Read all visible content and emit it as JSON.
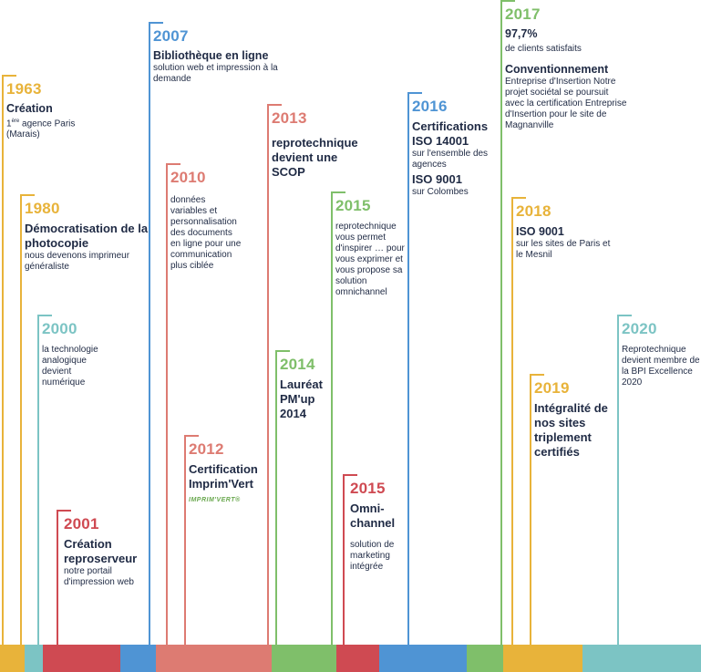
{
  "colors": {
    "yellow": "#e8b33a",
    "teal": "#7cc4c4",
    "red": "#cf4a52",
    "blue": "#4f94d4",
    "salmon": "#dd7b72",
    "green": "#7fbf6a"
  },
  "entries": {
    "e1963": {
      "year": "1963",
      "head": "Création",
      "sup": "ère",
      "text1": "1",
      "text2": " agence Paris",
      "text3": "(Marais)"
    },
    "e1980": {
      "year": "1980",
      "head": "Démocratisation de la photocopie",
      "text": "nous devenons imprimeur généraliste"
    },
    "e2000": {
      "year": "2000",
      "text": "la technologie analogique devient numérique"
    },
    "e2001": {
      "year": "2001",
      "head": "Création reproserveur",
      "text": "notre portail d'impression web"
    },
    "e2007": {
      "year": "2007",
      "head": "Bibliothèque en ligne",
      "text": "solution web et impression à la demande"
    },
    "e2010": {
      "year": "2010",
      "text": "données variables et personnalisation des documents en ligne pour une communication plus ciblée"
    },
    "e2012": {
      "year": "2012",
      "head": "Certification Imprim'Vert",
      "logo": "IMPRIM'VERT®"
    },
    "e2013": {
      "year": "2013",
      "head": "reprotechnique devient une SCOP"
    },
    "e2014": {
      "year": "2014",
      "head": "Lauréat PM'up 2014"
    },
    "e2015a": {
      "year": "2015",
      "text": "reprotechnique vous permet d'inspirer … pour vous exprimer et vous propose sa solution omnichannel"
    },
    "e2015b": {
      "year": "2015",
      "head": "Omni-channel",
      "text": "solution de marketing intégrée"
    },
    "e2016": {
      "year": "2016",
      "head": "Certifications ISO 14001",
      "text": "sur l'ensemble des agences",
      "head2": "ISO 9001",
      "text2": "sur Colombes"
    },
    "e2017": {
      "year": "2017",
      "head": "97,7%",
      "text": "de clients satisfaits",
      "head2": "Conventionnement",
      "text2": "Entreprise d'Insertion Notre projet sociétal se poursuit avec la certification Entreprise d'Insertion pour le site de Magnanville"
    },
    "e2018": {
      "year": "2018",
      "head": "ISO 9001",
      "text": "sur les sites de Paris et le Mesnil"
    },
    "e2019": {
      "year": "2019",
      "head": "Intégralité de nos sites triplement certifiés"
    },
    "e2020": {
      "year": "2020",
      "text": "Reprotechnique devient membre de la BPI Excellence 2020"
    }
  }
}
